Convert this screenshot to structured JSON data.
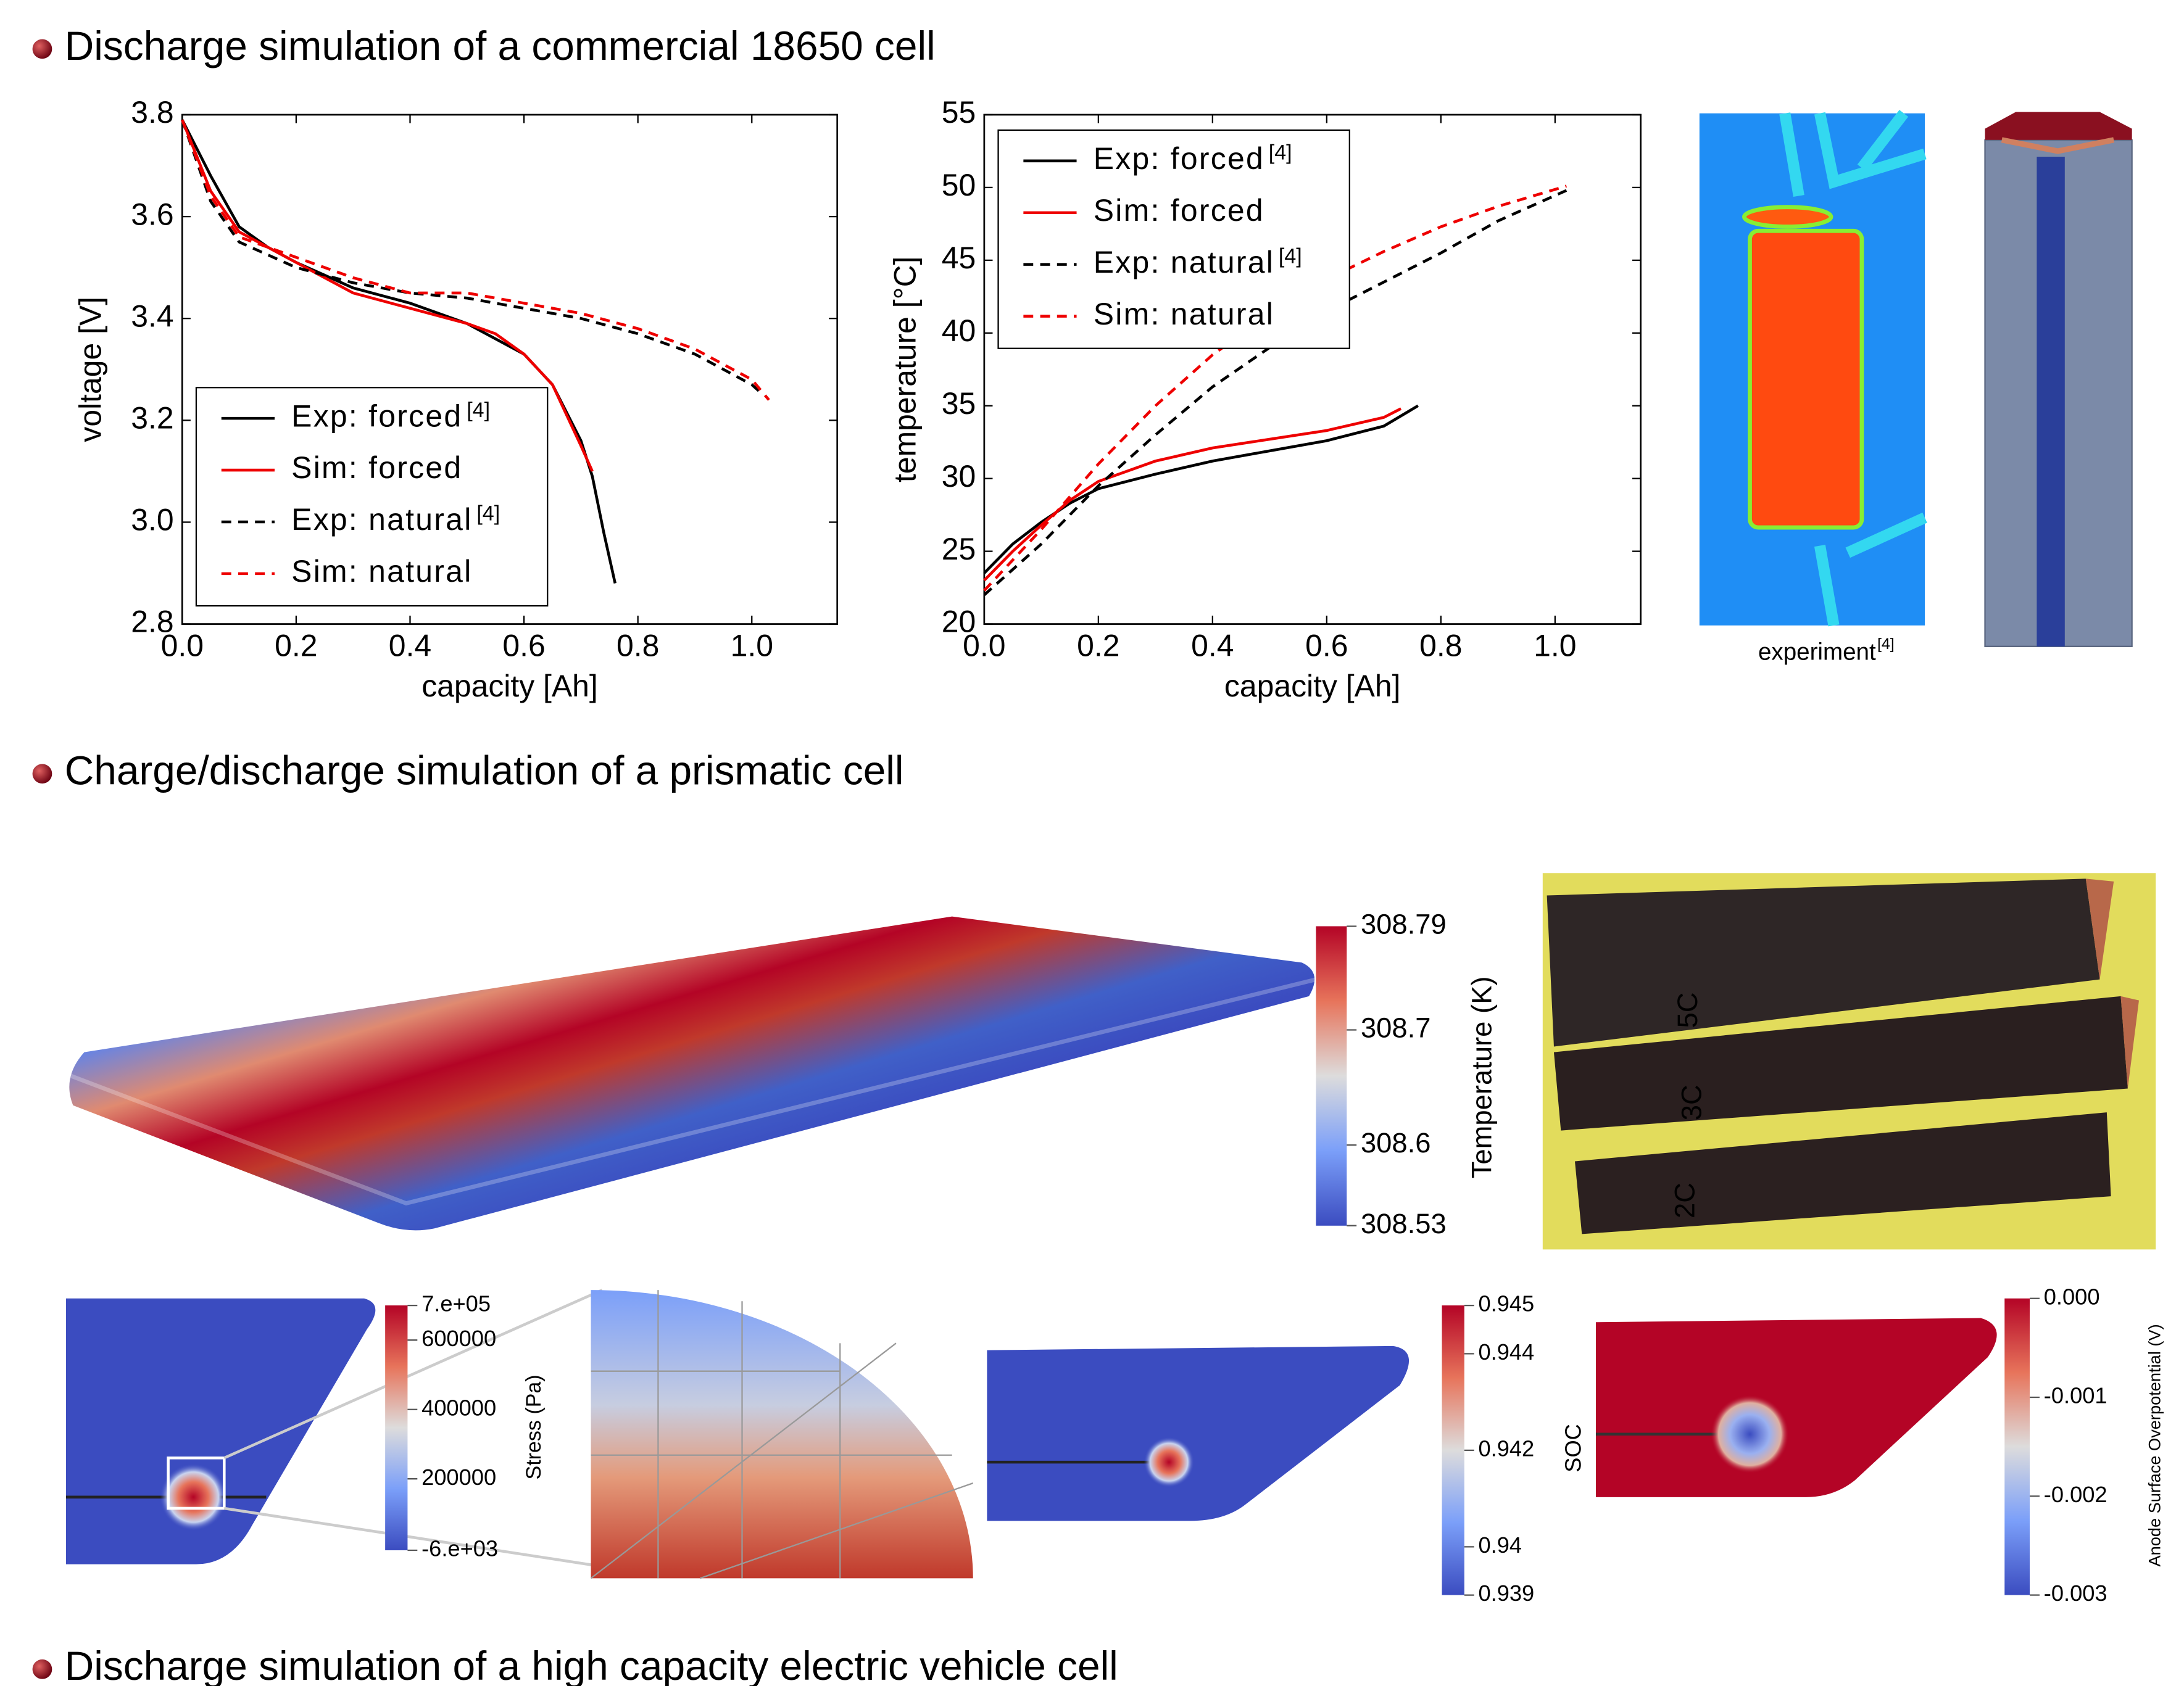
{
  "bullets": [
    "Discharge simulation of a commercial 18650 cell",
    "Charge/discharge simulation of a prismatic cell",
    "Discharge simulation of a high capacity electric vehicle cell"
  ],
  "chart_data": [
    {
      "type": "line",
      "xlabel": "capacity [Ah]",
      "ylabel": "voltage [V]",
      "legend": "lower left",
      "xlim": [
        0,
        1.15
      ],
      "ylim": [
        2.8,
        3.8
      ],
      "xticks": [
        {
          "value": 0,
          "label": "0.0"
        },
        0.2,
        0.4,
        0.6,
        0.8,
        {
          "value": 1,
          "label": "1.0"
        }
      ],
      "yticks": [
        2.8,
        {
          "value": 3,
          "label": "3.0"
        },
        3.2,
        3.4,
        3.6,
        3.8
      ],
      "series": [
        {
          "name": "Exp: forced",
          "ref": "[4]",
          "color": "#000000",
          "dash": "solid",
          "x": [
            0,
            0.05,
            0.1,
            0.15,
            0.2,
            0.3,
            0.4,
            0.5,
            0.6,
            0.65,
            0.7,
            0.72,
            0.74,
            0.76
          ],
          "values": [
            3.79,
            3.68,
            3.58,
            3.54,
            3.51,
            3.46,
            3.43,
            3.39,
            3.33,
            3.27,
            3.16,
            3.09,
            2.98,
            2.88
          ]
        },
        {
          "name": "Sim: forced",
          "color": "#ee0000",
          "dash": "solid",
          "x": [
            0,
            0.05,
            0.1,
            0.2,
            0.3,
            0.4,
            0.5,
            0.55,
            0.6,
            0.65,
            0.7,
            0.72
          ],
          "values": [
            3.79,
            3.65,
            3.57,
            3.51,
            3.45,
            3.42,
            3.39,
            3.37,
            3.33,
            3.27,
            3.15,
            3.1
          ]
        },
        {
          "name": "Exp: natural",
          "ref": "[4]",
          "color": "#000000",
          "dash": "dashed",
          "x": [
            0,
            0.05,
            0.1,
            0.2,
            0.3,
            0.4,
            0.5,
            0.6,
            0.7,
            0.8,
            0.9,
            1.0,
            1.02
          ],
          "values": [
            3.79,
            3.63,
            3.55,
            3.5,
            3.47,
            3.45,
            3.44,
            3.42,
            3.4,
            3.37,
            3.33,
            3.27,
            3.25
          ]
        },
        {
          "name": "Sim: natural",
          "color": "#ee0000",
          "dash": "dashed",
          "x": [
            0,
            0.05,
            0.1,
            0.2,
            0.3,
            0.4,
            0.5,
            0.6,
            0.7,
            0.8,
            0.9,
            1.0,
            1.03
          ],
          "values": [
            3.79,
            3.64,
            3.56,
            3.52,
            3.48,
            3.45,
            3.45,
            3.43,
            3.41,
            3.38,
            3.34,
            3.28,
            3.24
          ]
        }
      ]
    },
    {
      "type": "line",
      "xlabel": "capacity [Ah]",
      "ylabel": "temperature [°C]",
      "legend": "upper left",
      "xlim": [
        0,
        1.15
      ],
      "ylim": [
        20,
        55
      ],
      "xticks": [
        {
          "value": 0,
          "label": "0.0"
        },
        0.2,
        0.4,
        0.6,
        0.8,
        {
          "value": 1,
          "label": "1.0"
        }
      ],
      "yticks": [
        20,
        25,
        30,
        35,
        40,
        45,
        50,
        55
      ],
      "series": [
        {
          "name": "Exp: forced",
          "ref": "[4]",
          "color": "#000000",
          "dash": "solid",
          "x": [
            0,
            0.05,
            0.1,
            0.15,
            0.2,
            0.3,
            0.4,
            0.5,
            0.6,
            0.7,
            0.76
          ],
          "values": [
            23.5,
            25.5,
            27,
            28.3,
            29.3,
            30.3,
            31.2,
            31.9,
            32.6,
            33.6,
            35
          ]
        },
        {
          "name": "Sim: forced",
          "color": "#ee0000",
          "dash": "solid",
          "x": [
            0,
            0.05,
            0.1,
            0.15,
            0.2,
            0.3,
            0.4,
            0.5,
            0.6,
            0.7,
            0.73
          ],
          "values": [
            23,
            25,
            26.8,
            28.5,
            29.8,
            31.2,
            32.1,
            32.7,
            33.3,
            34.2,
            34.8
          ]
        },
        {
          "name": "Exp: natural",
          "ref": "[4]",
          "color": "#000000",
          "dash": "dashed",
          "x": [
            0,
            0.1,
            0.2,
            0.3,
            0.4,
            0.5,
            0.6,
            0.7,
            0.8,
            0.9,
            1.02
          ],
          "values": [
            22,
            25.5,
            29.5,
            33,
            36.3,
            39,
            41.5,
            43.5,
            45.5,
            47.7,
            49.8
          ]
        },
        {
          "name": "Sim: natural",
          "color": "#ee0000",
          "dash": "dashed",
          "x": [
            0,
            0.1,
            0.2,
            0.3,
            0.4,
            0.5,
            0.6,
            0.7,
            0.8,
            0.9,
            1.02
          ],
          "values": [
            22.3,
            26.5,
            31,
            35,
            38.5,
            41.3,
            43.7,
            45.6,
            47.3,
            48.7,
            50.1
          ]
        }
      ]
    }
  ],
  "thermal_caption": {
    "text": "experiment",
    "ref": "[4]"
  },
  "photo_labels": [
    "5C",
    "3C",
    "2C"
  ],
  "colorbars": [
    {
      "label": "Temperature (K)",
      "lim": [
        308.53,
        308.79
      ],
      "ticks": [
        308.79,
        308.7,
        308.6,
        308.53
      ]
    },
    {
      "label": "Stress (Pa)",
      "lim": [
        -6000,
        700000
      ],
      "ticks": [
        {
          "value": 700000,
          "label": "7.e+05"
        },
        600000,
        400000,
        200000,
        {
          "value": -6000,
          "label": "-6.e+03"
        }
      ]
    },
    {
      "label": "SOC",
      "lim": [
        0.939,
        0.945
      ],
      "ticks": [
        0.945,
        0.944,
        0.942,
        0.94,
        0.939
      ]
    },
    {
      "label": "Anode Surface Overpotential (V)",
      "lim": [
        -0.003,
        0
      ],
      "ticks": [
        {
          "value": 0,
          "label": "0.000"
        },
        -0.001,
        -0.002,
        -0.003
      ]
    }
  ]
}
